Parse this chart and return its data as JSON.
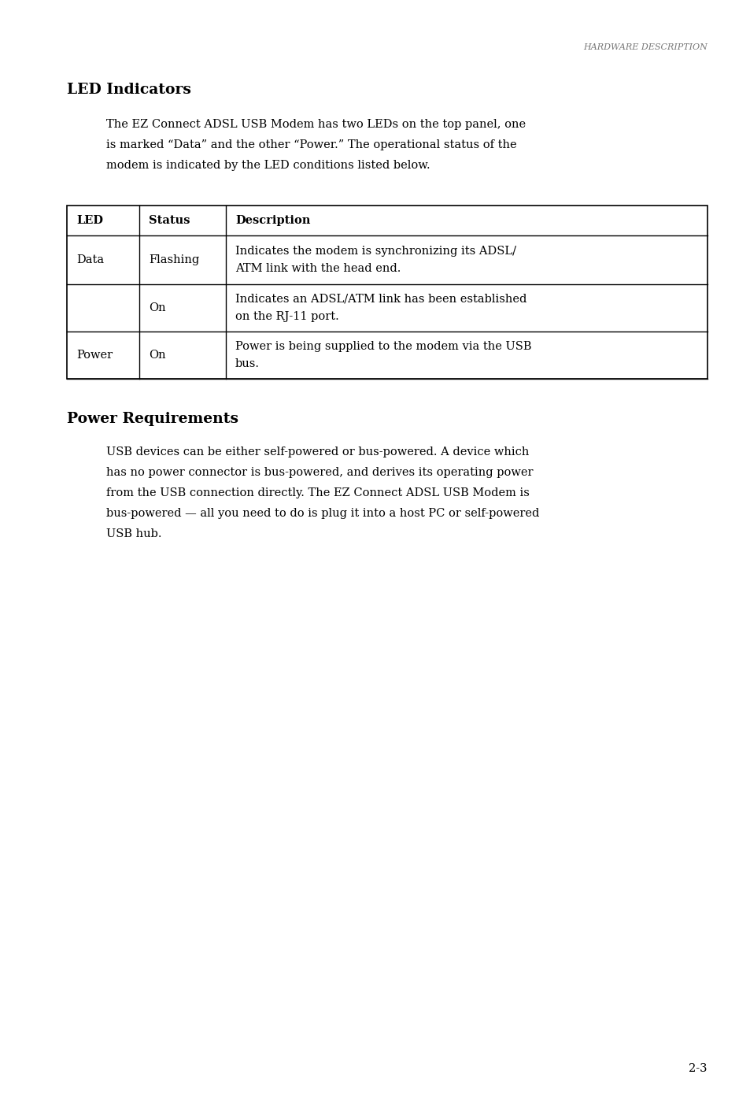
{
  "bg_color": "#ffffff",
  "page_width": 9.54,
  "page_height": 13.88,
  "dpi": 100,
  "header_text": "HARDWARE DESCRIPTION",
  "header_italic": true,
  "header_color": "#777777",
  "header_fontsize": 8.0,
  "section1_title": "LED Indicators",
  "section1_title_fontsize": 13.5,
  "section1_title_bold": true,
  "section1_body_lines": [
    "The EZ Connect ADSL USB Modem has two LEDs on the top panel, one",
    "is marked “Data” and the other “Power.” The operational status of the",
    "modem is indicated by the LED conditions listed below."
  ],
  "section1_body_fontsize": 10.5,
  "table_headers": [
    "LED",
    "Status",
    "Description"
  ],
  "table_header_bold": true,
  "table_data": [
    [
      "Data",
      "Flashing",
      "Indicates the modem is synchronizing its ADSL/\nATM link with the head end."
    ],
    [
      "",
      "On",
      "Indicates an ADSL/ATM link has been established\non the RJ-11 port."
    ],
    [
      "Power",
      "On",
      "Power is being supplied to the modem via the USB\nbus."
    ]
  ],
  "table_fontsize": 10.5,
  "section2_title": "Power Requirements",
  "section2_title_fontsize": 13.5,
  "section2_title_bold": true,
  "section2_body_lines": [
    "USB devices can be either self-powered or bus-powered. A device which",
    "has no power connector is bus-powered, and derives its operating power",
    "from the USB connection directly. The EZ Connect ADSL USB Modem is",
    "bus-powered — all you need to do is plug it into a host PC or self-powered",
    "USB hub."
  ],
  "section2_body_fontsize": 10.5,
  "page_num": "2-3",
  "page_num_fontsize": 10.5
}
